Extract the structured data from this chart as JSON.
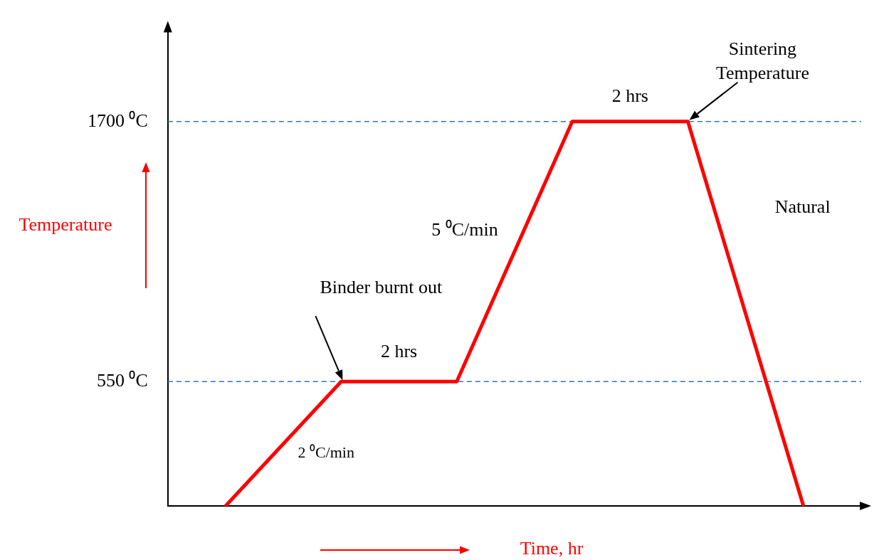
{
  "chart_data": {
    "type": "line",
    "categories": [
      null,
      null,
      null,
      null,
      null,
      null
    ],
    "series": [
      {
        "color": "#ff0000",
        "values": [
          0,
          550,
          550,
          1700,
          1700,
          0
        ]
      }
    ],
    "ylim": [
      0,
      2100
    ],
    "yticks": [
      {
        "value": 550,
        "label": "550 ⁰C"
      },
      {
        "value": 1700,
        "label": "1700 ⁰C"
      }
    ],
    "ylabel": "Temperature",
    "xlabel": "Time, hr",
    "ref_lines": [
      {
        "axis": "y",
        "value": 550,
        "color": "#2e75b6",
        "line_style": "dashed"
      },
      {
        "axis": "y",
        "value": 1700,
        "color": "#2e75b6",
        "line_style": "dashed"
      }
    ],
    "annotations": [
      "Binder burnt out",
      "2 hrs",
      "5 ⁰C/min",
      "2 hrs",
      "Sintering Temperature",
      "Natural",
      "2 ⁰C/min"
    ],
    "tick_labels": "y",
    "grid": false,
    "legend": false,
    "marker": "none",
    "line_style": "solid"
  }
}
